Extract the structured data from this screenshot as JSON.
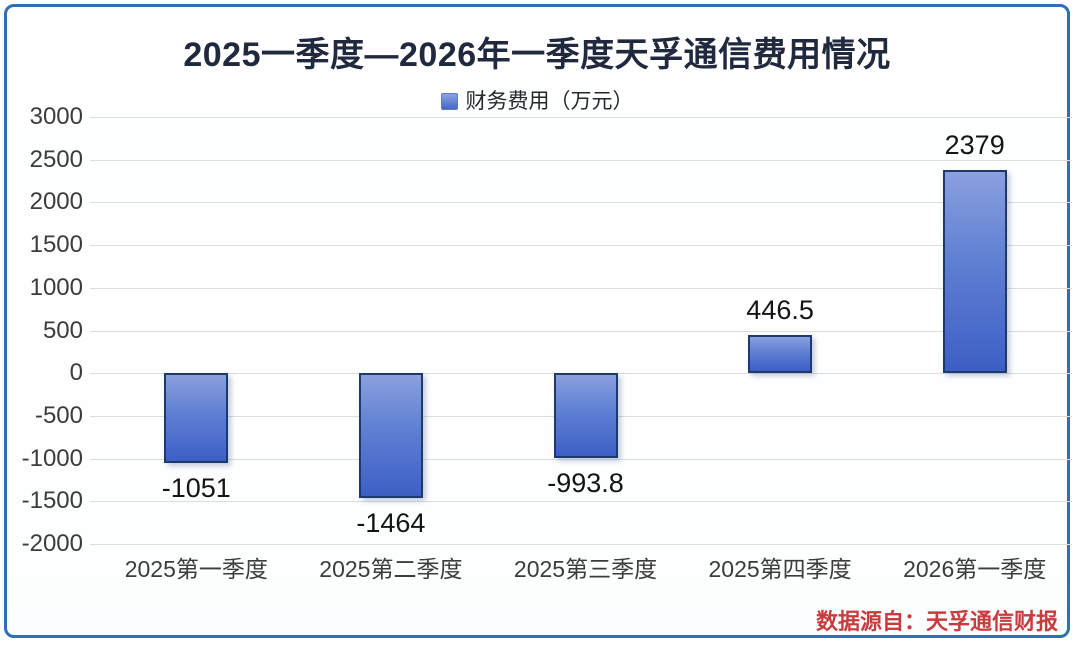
{
  "title": "2025一季度—2026年一季度天孚通信费用情况",
  "legend": {
    "label": "财务费用（万元）",
    "marker_color": "#4568ca"
  },
  "source_note": "数据源自：天孚通信财报",
  "colors": {
    "frame_border": "#2e6fb7",
    "bar_gradient_top": "#8aa0de",
    "bar_gradient_bottom": "#3d5fc5",
    "bar_border": "#1c3a6e",
    "gridline": "#d9dde4",
    "title_text": "#20293e",
    "source_text": "#c83c3e"
  },
  "chart_data": {
    "type": "bar",
    "title": "2025一季度—2026年一季度天孚通信费用情况",
    "series_name": "财务费用（万元）",
    "categories": [
      "2025第一季度",
      "2025第二季度",
      "2025第三季度",
      "2025第四季度",
      "2026第一季度"
    ],
    "values": [
      -1051,
      -1464,
      -993.8,
      446.5,
      2379
    ],
    "value_labels": [
      "-1051",
      "-1464",
      "-993.8",
      "446.5",
      "2379"
    ],
    "xlabel": "",
    "ylabel": "",
    "ylim": [
      -2000,
      3000
    ],
    "ytick_step": 500,
    "yticks": [
      3000,
      2500,
      2000,
      1500,
      1000,
      500,
      0,
      -500,
      -1000,
      -1500,
      -2000
    ],
    "grid": true,
    "legend_position": "top-center",
    "bar_label_position": "outside-end"
  }
}
